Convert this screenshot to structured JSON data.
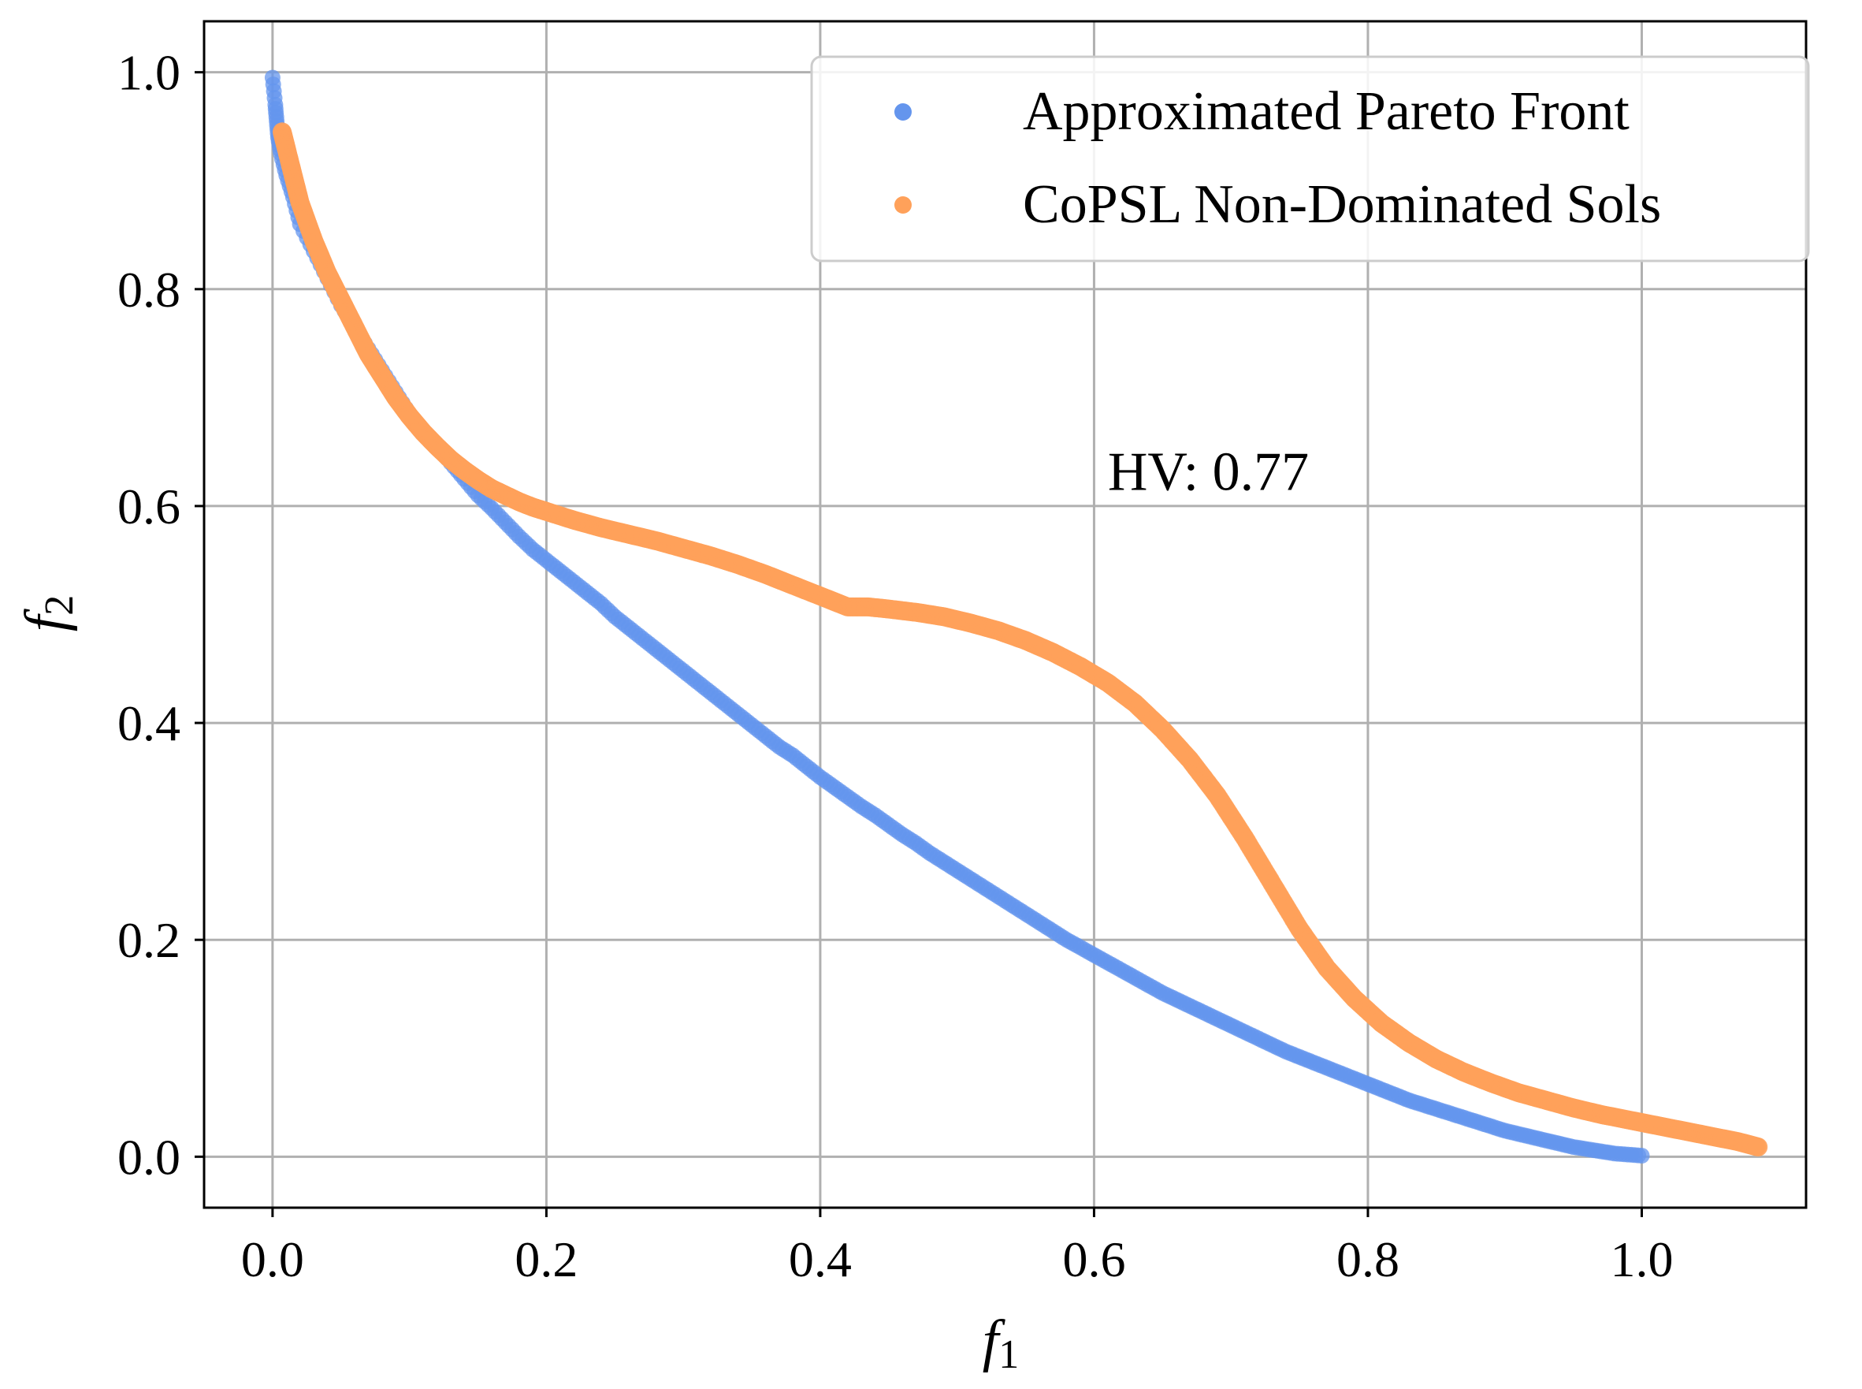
{
  "chart_data": {
    "type": "scatter",
    "title": "",
    "xlabel": "f",
    "xlabel_sub": "1",
    "ylabel": "f",
    "ylabel_sub": "2",
    "xlim": [
      -0.05,
      1.12
    ],
    "ylim": [
      -0.047,
      1.047
    ],
    "grid": true,
    "legend_position": "top-right",
    "xticks": [
      0.0,
      0.2,
      0.4,
      0.6,
      0.8,
      1.0
    ],
    "xtick_labels": [
      "0.0",
      "0.2",
      "0.4",
      "0.6",
      "0.8",
      "1.0"
    ],
    "yticks": [
      0.0,
      0.2,
      0.4,
      0.6,
      0.8,
      1.0
    ],
    "ytick_labels": [
      "0.0",
      "0.2",
      "0.4",
      "0.6",
      "0.8",
      "1.0"
    ],
    "annotation": {
      "text": "HV: 0.77",
      "x": 0.61,
      "y": 0.615
    },
    "series": [
      {
        "name": "Approximated Pareto Front",
        "color": "#6495ED",
        "x": [
          0.0,
          0.002,
          0.003,
          0.004,
          0.006,
          0.01,
          0.015,
          0.02,
          0.03,
          0.04,
          0.05,
          0.06,
          0.07,
          0.08,
          0.09,
          0.1,
          0.11,
          0.12,
          0.13,
          0.14,
          0.15,
          0.16,
          0.17,
          0.18,
          0.19,
          0.2,
          0.21,
          0.22,
          0.23,
          0.24,
          0.25,
          0.26,
          0.27,
          0.28,
          0.29,
          0.3,
          0.31,
          0.32,
          0.33,
          0.34,
          0.35,
          0.36,
          0.37,
          0.38,
          0.39,
          0.4,
          0.41,
          0.42,
          0.43,
          0.44,
          0.45,
          0.46,
          0.47,
          0.48,
          0.49,
          0.5,
          0.51,
          0.52,
          0.53,
          0.54,
          0.55,
          0.56,
          0.57,
          0.58,
          0.59,
          0.6,
          0.61,
          0.62,
          0.63,
          0.64,
          0.65,
          0.66,
          0.67,
          0.68,
          0.69,
          0.7,
          0.71,
          0.72,
          0.73,
          0.74,
          0.75,
          0.76,
          0.77,
          0.78,
          0.79,
          0.8,
          0.81,
          0.82,
          0.83,
          0.84,
          0.85,
          0.86,
          0.87,
          0.88,
          0.89,
          0.9,
          0.91,
          0.92,
          0.93,
          0.94,
          0.95,
          0.96,
          0.97,
          0.98,
          0.99,
          1.0
        ],
        "y": [
          0.995,
          0.97,
          0.955,
          0.94,
          0.925,
          0.905,
          0.885,
          0.86,
          0.835,
          0.81,
          0.785,
          0.765,
          0.745,
          0.725,
          0.705,
          0.685,
          0.67,
          0.655,
          0.64,
          0.625,
          0.61,
          0.598,
          0.585,
          0.572,
          0.56,
          0.55,
          0.54,
          0.53,
          0.52,
          0.51,
          0.498,
          0.488,
          0.478,
          0.468,
          0.458,
          0.448,
          0.438,
          0.428,
          0.418,
          0.408,
          0.398,
          0.388,
          0.378,
          0.37,
          0.36,
          0.35,
          0.341,
          0.332,
          0.323,
          0.315,
          0.306,
          0.297,
          0.289,
          0.28,
          0.272,
          0.264,
          0.256,
          0.248,
          0.24,
          0.232,
          0.224,
          0.216,
          0.208,
          0.2,
          0.193,
          0.186,
          0.179,
          0.172,
          0.165,
          0.158,
          0.151,
          0.145,
          0.139,
          0.133,
          0.127,
          0.121,
          0.115,
          0.109,
          0.103,
          0.097,
          0.092,
          0.087,
          0.082,
          0.077,
          0.072,
          0.067,
          0.062,
          0.057,
          0.052,
          0.048,
          0.044,
          0.04,
          0.036,
          0.032,
          0.028,
          0.024,
          0.021,
          0.018,
          0.015,
          0.012,
          0.009,
          0.007,
          0.005,
          0.003,
          0.002,
          0.001
        ]
      },
      {
        "name": "CoPSL Non-Dominated Sols",
        "color": "#FFA15A",
        "x": [
          0.007,
          0.01,
          0.015,
          0.02,
          0.03,
          0.04,
          0.05,
          0.06,
          0.07,
          0.08,
          0.09,
          0.1,
          0.11,
          0.12,
          0.13,
          0.14,
          0.15,
          0.16,
          0.17,
          0.18,
          0.19,
          0.2,
          0.22,
          0.24,
          0.26,
          0.28,
          0.3,
          0.32,
          0.34,
          0.36,
          0.38,
          0.4,
          0.42,
          0.435,
          0.45,
          0.47,
          0.49,
          0.51,
          0.53,
          0.55,
          0.57,
          0.59,
          0.61,
          0.63,
          0.65,
          0.67,
          0.69,
          0.71,
          0.73,
          0.75,
          0.77,
          0.79,
          0.81,
          0.83,
          0.85,
          0.87,
          0.89,
          0.91,
          0.93,
          0.95,
          0.97,
          0.99,
          1.01,
          1.03,
          1.05,
          1.07,
          1.085
        ],
        "y": [
          0.945,
          0.93,
          0.905,
          0.88,
          0.845,
          0.815,
          0.79,
          0.765,
          0.74,
          0.72,
          0.7,
          0.683,
          0.668,
          0.655,
          0.643,
          0.633,
          0.624,
          0.616,
          0.61,
          0.604,
          0.599,
          0.595,
          0.587,
          0.58,
          0.574,
          0.568,
          0.561,
          0.554,
          0.546,
          0.537,
          0.527,
          0.517,
          0.507,
          0.507,
          0.505,
          0.502,
          0.498,
          0.492,
          0.485,
          0.476,
          0.465,
          0.452,
          0.437,
          0.418,
          0.394,
          0.366,
          0.333,
          0.294,
          0.252,
          0.21,
          0.174,
          0.146,
          0.123,
          0.105,
          0.09,
          0.078,
          0.068,
          0.059,
          0.052,
          0.045,
          0.039,
          0.034,
          0.029,
          0.024,
          0.019,
          0.014,
          0.009
        ]
      }
    ]
  }
}
